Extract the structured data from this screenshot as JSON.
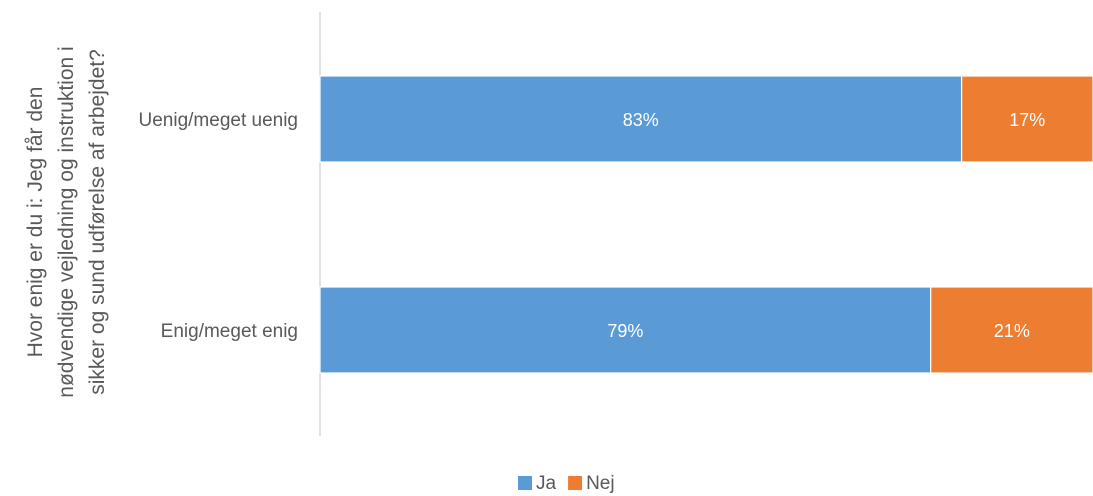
{
  "chart_data": {
    "type": "bar",
    "orientation": "horizontal",
    "stacked": "100%",
    "ylabel_lines": [
      "Hvor enig er du i: Jeg får den",
      "nødvendige vejledning og instruktion i",
      "sikker og sund udførelse af arbejdet?"
    ],
    "categories": [
      "Uenig/meget uenig",
      "Enig/meget enig"
    ],
    "series": [
      {
        "name": "Ja",
        "color": "#5B9BD5",
        "values": [
          83,
          79
        ],
        "labels": [
          "83%",
          "79%"
        ]
      },
      {
        "name": "Nej",
        "color": "#ED7D31",
        "values": [
          17,
          21
        ],
        "labels": [
          "17%",
          "21%"
        ]
      }
    ],
    "xlim": [
      0,
      100
    ],
    "grid": false,
    "legend_position": "bottom"
  }
}
